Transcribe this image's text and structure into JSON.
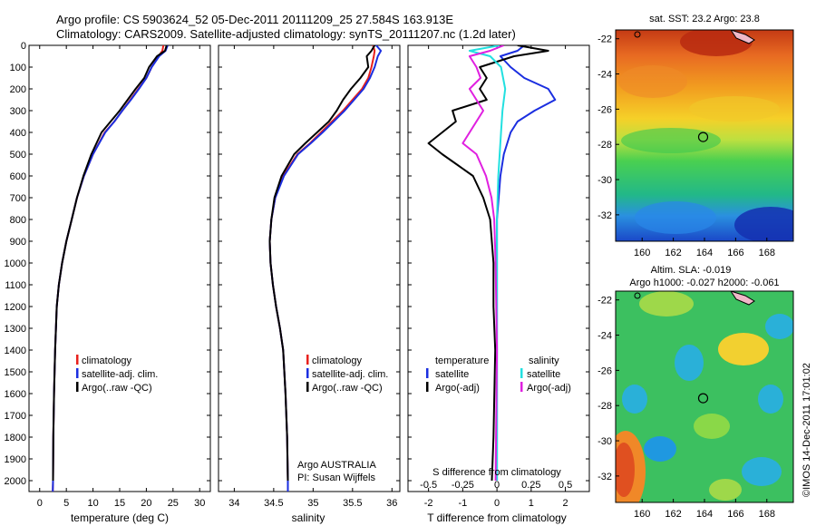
{
  "titles": {
    "line1": "Argo profile: CS 5903624_52 05-Dec-2011 20111209_25 27.584S 163.913E",
    "line2": "Climatology: CARS2009. Satellite-adjusted climatology: synTS_20111207.nc (1.2d later)"
  },
  "colors": {
    "climatology": "#e8201c",
    "satellite": "#1a2ee0",
    "argo": "#000000",
    "sat_salinity": "#22e0e0",
    "argo_salinity_adj": "#e020e0"
  },
  "y_axis": {
    "ticks": [
      0,
      100,
      200,
      300,
      400,
      500,
      600,
      700,
      800,
      900,
      1000,
      1100,
      1200,
      1300,
      1400,
      1500,
      1600,
      1700,
      1800,
      1900,
      2000
    ],
    "range": [
      0,
      2050
    ]
  },
  "chart_data": [
    {
      "type": "line",
      "xlabel": "temperature (deg C)",
      "xticks": [
        0,
        5,
        10,
        15,
        20,
        25,
        30
      ],
      "xlim": [
        -2,
        32
      ],
      "legend": {
        "items": [
          {
            "label": "climatology",
            "color": "#e8201c"
          },
          {
            "label": "satellite-adj. clim.",
            "color": "#1a2ee0"
          },
          {
            "label": "Argo(..raw -QC)",
            "color": "#000000"
          }
        ]
      },
      "series": [
        {
          "key": "clim",
          "color": "#e8201c",
          "x": [
            23.2,
            23.0,
            22.3,
            21.0,
            20.0,
            18.5,
            17.0,
            15.5,
            14.0,
            12.2,
            10.0,
            8.3,
            7.0,
            6.0,
            5.0,
            4.2,
            3.6,
            3.2,
            2.9,
            2.7,
            2.55,
            2.5,
            2.45
          ],
          "y": [
            0,
            25,
            50,
            100,
            150,
            200,
            250,
            300,
            350,
            400,
            500,
            600,
            700,
            800,
            900,
            1000,
            1100,
            1200,
            1400,
            1600,
            1800,
            2000,
            2050
          ]
        },
        {
          "key": "sat",
          "color": "#1a2ee0",
          "x": [
            24.0,
            23.6,
            22.4,
            21.0,
            20.0,
            18.6,
            17.1,
            15.5,
            14.0,
            12.3,
            10.0,
            8.3,
            7.0,
            6.0,
            5.0,
            4.2,
            3.6,
            3.2,
            2.9,
            2.7,
            2.55,
            2.5,
            2.45
          ],
          "y": [
            0,
            25,
            50,
            100,
            150,
            200,
            250,
            300,
            350,
            400,
            500,
            600,
            700,
            800,
            900,
            1000,
            1100,
            1200,
            1400,
            1600,
            1800,
            2000,
            2050
          ]
        },
        {
          "key": "argo",
          "color": "#000000",
          "x": [
            23.8,
            23.5,
            22.0,
            20.5,
            19.6,
            18.0,
            16.5,
            15.0,
            13.3,
            11.6,
            9.7,
            8.2,
            7.0,
            6.0,
            5.0,
            4.2,
            3.6,
            3.2,
            2.9,
            2.7,
            2.55,
            2.5
          ],
          "y": [
            0,
            25,
            50,
            100,
            150,
            200,
            250,
            300,
            350,
            400,
            500,
            600,
            700,
            800,
            900,
            1000,
            1100,
            1200,
            1400,
            1600,
            1800,
            2000
          ]
        }
      ]
    },
    {
      "type": "line",
      "xlabel": "salinity",
      "xticks": [
        34,
        34.5,
        35,
        35.5,
        36
      ],
      "xlim": [
        33.8,
        36.1
      ],
      "legend": {
        "items": [
          {
            "label": "climatology",
            "color": "#e8201c"
          },
          {
            "label": "satellite-adj. clim.",
            "color": "#1a2ee0"
          },
          {
            "label": "Argo(..raw -QC)",
            "color": "#000000"
          }
        ]
      },
      "annotation": [
        "Argo AUSTRALIA",
        "PI: Susan Wijffels"
      ],
      "series": [
        {
          "key": "clim",
          "color": "#e8201c",
          "x": [
            35.76,
            35.78,
            35.77,
            35.74,
            35.7,
            35.62,
            35.5,
            35.38,
            35.24,
            35.1,
            34.96,
            34.8,
            34.62,
            34.52,
            34.47,
            34.45,
            34.46,
            34.49,
            34.53,
            34.58,
            34.62,
            34.65,
            34.67,
            34.68,
            34.68
          ],
          "y": [
            0,
            25,
            50,
            100,
            150,
            200,
            250,
            300,
            350,
            400,
            450,
            500,
            600,
            700,
            800,
            900,
            1000,
            1100,
            1200,
            1300,
            1400,
            1600,
            1800,
            2000,
            2050
          ]
        },
        {
          "key": "sat",
          "color": "#1a2ee0",
          "x": [
            35.8,
            35.86,
            35.82,
            35.78,
            35.72,
            35.64,
            35.52,
            35.4,
            35.26,
            35.12,
            34.97,
            34.81,
            34.63,
            34.52,
            34.47,
            34.45,
            34.46,
            34.49,
            34.53,
            34.58,
            34.62,
            34.65,
            34.67,
            34.68,
            34.68
          ],
          "y": [
            0,
            25,
            50,
            100,
            150,
            200,
            250,
            300,
            350,
            400,
            450,
            500,
            600,
            700,
            800,
            900,
            1000,
            1100,
            1200,
            1300,
            1400,
            1600,
            1800,
            2000,
            2050
          ]
        },
        {
          "key": "argo",
          "color": "#000000",
          "x": [
            35.78,
            35.74,
            35.68,
            35.7,
            35.6,
            35.48,
            35.38,
            35.3,
            35.2,
            35.05,
            34.9,
            34.76,
            34.6,
            34.51,
            34.47,
            34.45,
            34.46,
            34.49,
            34.53,
            34.58,
            34.62,
            34.65,
            34.67,
            34.68
          ],
          "y": [
            0,
            25,
            50,
            100,
            150,
            200,
            250,
            300,
            350,
            400,
            450,
            500,
            600,
            700,
            800,
            900,
            1000,
            1100,
            1200,
            1300,
            1400,
            1600,
            1800,
            2000
          ]
        }
      ]
    },
    {
      "type": "line",
      "xlabel": "T difference from climatology",
      "xticks": [
        -2,
        -1,
        0,
        1,
        2
      ],
      "xlim": [
        -2.6,
        2.7
      ],
      "top_axis": {
        "label": "S difference from climatology",
        "ticks": [
          -0.5,
          -0.25,
          0,
          0.25,
          0.5
        ]
      },
      "legend": {
        "left": {
          "header": "temperature",
          "items": [
            {
              "label": "satellite",
              "color": "#1a2ee0"
            },
            {
              "label": "Argo(-adj)",
              "color": "#000000"
            }
          ]
        },
        "right": {
          "header": "salinity",
          "items": [
            {
              "label": "satellite",
              "color": "#22e0e0"
            },
            {
              "label": "Argo(-adj)",
              "color": "#e020e0"
            }
          ]
        }
      },
      "series": [
        {
          "key": "t_sat",
          "color": "#1a2ee0",
          "x": [
            0.8,
            0.6,
            0.1,
            0.4,
            0.8,
            1.5,
            1.7,
            1.1,
            0.6,
            0.4,
            0.2,
            0.1,
            0.05,
            0.0,
            0.0,
            0.0,
            0.0,
            0.0
          ],
          "y": [
            0,
            25,
            50,
            100,
            150,
            200,
            250,
            300,
            350,
            400,
            500,
            600,
            700,
            800,
            1000,
            1400,
            1800,
            2000
          ]
        },
        {
          "key": "t_argo",
          "color": "#000000",
          "x": [
            0.6,
            1.5,
            0.5,
            -0.5,
            -0.3,
            -0.5,
            -0.3,
            -1.3,
            -1.2,
            -2.0,
            -1.6,
            -0.7,
            -0.4,
            -0.2,
            -0.1,
            -0.1,
            -0.05,
            -0.1,
            -0.15
          ],
          "y": [
            0,
            25,
            50,
            100,
            150,
            200,
            250,
            300,
            350,
            450,
            500,
            600,
            700,
            800,
            1000,
            1200,
            1400,
            1800,
            2000
          ]
        },
        {
          "key": "s_sat",
          "color": "#22e0e0",
          "x": [
            0.02,
            -0.2,
            -0.05,
            0.03,
            0.06,
            0.04,
            0.03,
            0.02,
            0.01,
            0.0,
            0.0,
            0.0,
            0.0
          ],
          "y": [
            0,
            25,
            50,
            100,
            200,
            300,
            400,
            500,
            600,
            800,
            1200,
            1600,
            2000
          ]
        },
        {
          "key": "s_argo",
          "color": "#e020e0",
          "x": [
            0.05,
            -0.05,
            -0.2,
            -0.15,
            -0.12,
            -0.2,
            -0.1,
            -0.25,
            -0.15,
            -0.08,
            -0.04,
            -0.02,
            -0.01,
            0.0,
            -0.01
          ],
          "y": [
            0,
            25,
            50,
            100,
            150,
            200,
            300,
            450,
            500,
            600,
            700,
            800,
            1000,
            1400,
            2000
          ]
        }
      ]
    },
    {
      "type": "heatmap",
      "title": "sat. SST: 23.2 Argo: 23.8",
      "xticks": [
        160,
        162,
        164,
        166,
        168
      ],
      "yticks": [
        -22,
        -24,
        -26,
        -28,
        -30,
        -32
      ],
      "xlim": [
        158.3,
        169.7
      ],
      "ylim": [
        -33.5,
        -21.5
      ],
      "argo_position": {
        "lon": 163.913,
        "lat": -27.584
      }
    },
    {
      "type": "heatmap",
      "title": [
        "Altim. SLA: -0.019",
        "Argo h1000: -0.027 h2000: -0.061"
      ],
      "xticks": [
        160,
        162,
        164,
        166,
        168
      ],
      "yticks": [
        -22,
        -24,
        -26,
        -28,
        -30,
        -32
      ],
      "xlim": [
        158.3,
        169.7
      ],
      "ylim": [
        -33.5,
        -21.5
      ],
      "argo_position": {
        "lon": 163.913,
        "lat": -27.584
      }
    }
  ],
  "watermark": "©IMOS 14-Dec-2011 17:01:02"
}
